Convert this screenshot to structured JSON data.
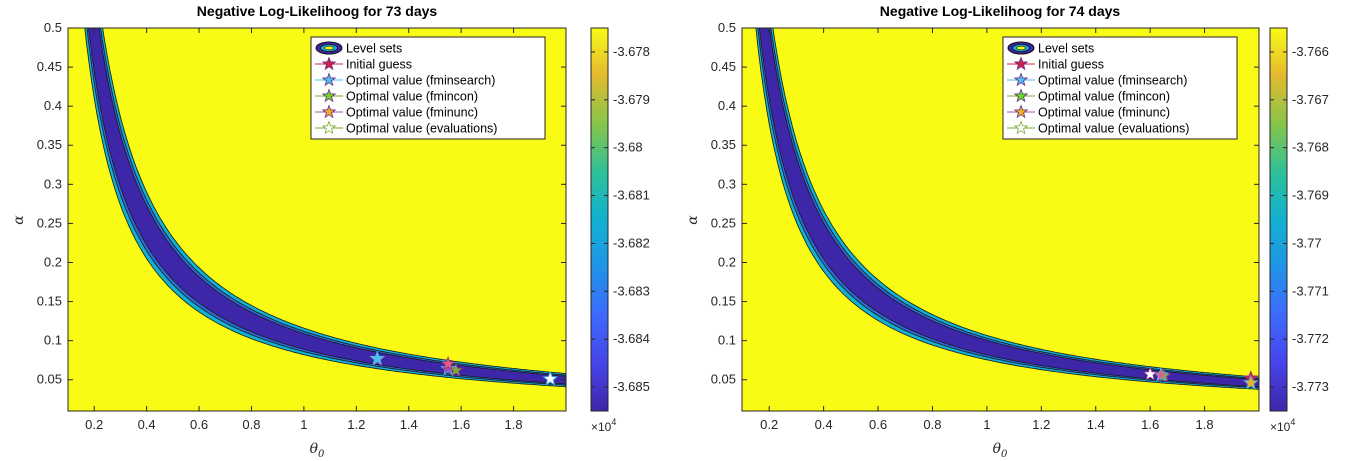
{
  "chart_data": [
    {
      "type": "contour",
      "title": "Negative Log-Likelihoog for 73 days",
      "xlabel": "θ",
      "xlabel_sub": "0",
      "ylabel": "α",
      "xlim": [
        0.1,
        2.0
      ],
      "ylim": [
        0.01,
        0.5
      ],
      "xticks": [
        "0.2",
        "0.4",
        "0.6",
        "0.8",
        "1",
        "1.2",
        "1.4",
        "1.6",
        "1.8"
      ],
      "yticks": [
        "0.05",
        "0.1",
        "0.15",
        "0.2",
        "0.25",
        "0.3",
        "0.35",
        "0.4",
        "0.45",
        "0.5"
      ],
      "valley_k": 0.1,
      "colorbar": {
        "ticks": [
          "-3.678",
          "-3.679",
          "-3.68",
          "-3.681",
          "-3.682",
          "-3.683",
          "-3.684",
          "-3.685"
        ],
        "multiplier": "×10",
        "exponent": "4",
        "range": [
          -3.6855,
          -3.6775
        ]
      },
      "legend": {
        "placement": "top-right",
        "entries": [
          "Level sets",
          "Initial guess",
          "Optimal value (fminsearch)",
          "Optimal value (fmincon)",
          "Optimal value (fminunc)",
          "Optimal value (evaluations)"
        ]
      },
      "points": [
        {
          "series": "Initial guess",
          "x": 1.28,
          "y": 0.076,
          "color": "#cc2244"
        },
        {
          "series": "Optimal value (fminsearch)",
          "x": 1.28,
          "y": 0.077,
          "color": "#4dbeee"
        },
        {
          "series": "Optimal value (fmincon)",
          "x": 1.58,
          "y": 0.062,
          "color": "#77ac30"
        },
        {
          "series": "Optimal value (fminunc)",
          "x": 1.55,
          "y": 0.064,
          "color": "#a04fb0"
        },
        {
          "series": "Optimal value (fminsearch)",
          "x": 1.55,
          "y": 0.07,
          "color": "#e0607e"
        },
        {
          "series": "Optimal value (evaluations)",
          "x": 1.94,
          "y": 0.051,
          "color": "#ffffff"
        }
      ]
    },
    {
      "type": "contour",
      "title": "Negative Log-Likelihoog for 74 days",
      "xlabel": "θ",
      "xlabel_sub": "0",
      "ylabel": "α",
      "xlim": [
        0.1,
        2.0
      ],
      "ylim": [
        0.01,
        0.5
      ],
      "xticks": [
        "0.2",
        "0.4",
        "0.6",
        "0.8",
        "1",
        "1.2",
        "1.4",
        "1.6",
        "1.8"
      ],
      "yticks": [
        "0.05",
        "0.1",
        "0.15",
        "0.2",
        "0.25",
        "0.3",
        "0.35",
        "0.4",
        "0.45",
        "0.5"
      ],
      "valley_k": 0.092,
      "colorbar": {
        "ticks": [
          "-3.766",
          "-3.767",
          "-3.768",
          "-3.769",
          "-3.77",
          "-3.771",
          "-3.772",
          "-3.773"
        ],
        "multiplier": "×10",
        "exponent": "4",
        "range": [
          -3.7735,
          -3.7655
        ]
      },
      "legend": {
        "placement": "top-right",
        "entries": [
          "Level sets",
          "Initial guess",
          "Optimal value (fminsearch)",
          "Optimal value (fmincon)",
          "Optimal value (fminunc)",
          "Optimal value (evaluations)"
        ]
      },
      "points": [
        {
          "series": "Initial guess",
          "x": 1.97,
          "y": 0.052,
          "color": "#cc2244"
        },
        {
          "series": "Optimal value (fminunc)",
          "x": 1.97,
          "y": 0.046,
          "color": "#edb120"
        },
        {
          "series": "Optimal value (fmincon)",
          "x": 1.65,
          "y": 0.055,
          "color": "#77ac30"
        },
        {
          "series": "Optimal value (fminsearch)",
          "x": 1.64,
          "y": 0.056,
          "color": "#e0607e"
        },
        {
          "series": "Optimal value (evaluations)",
          "x": 1.6,
          "y": 0.057,
          "color": "#ffffff"
        }
      ]
    }
  ]
}
